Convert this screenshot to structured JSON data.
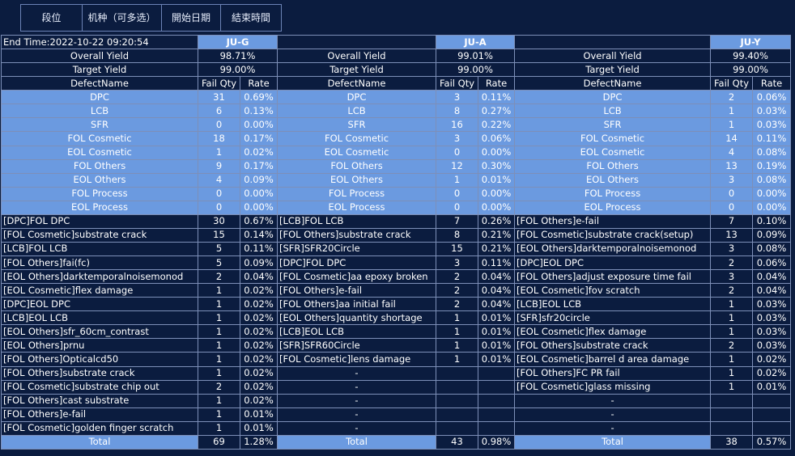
{
  "tabs": [
    "段位",
    "机种（可多选）",
    "開始日期",
    "結束時間"
  ],
  "end_time": "End Time:2022-10-22 09:20:54",
  "labels": {
    "overall": "Overall Yield",
    "target": "Target Yield",
    "defect": "DefectName",
    "failqty": "Fail Qty",
    "rate": "Rate",
    "total": "Total",
    "dash": "-"
  },
  "groups": [
    {
      "name": "JU-G",
      "overall_yield": "98.71%",
      "target_yield": "99.00%",
      "summary": [
        {
          "name": "DPC",
          "qty": "31",
          "rate": "0.69%"
        },
        {
          "name": "LCB",
          "qty": "6",
          "rate": "0.13%"
        },
        {
          "name": "SFR",
          "qty": "0",
          "rate": "0.00%"
        },
        {
          "name": "FOL Cosmetic",
          "qty": "18",
          "rate": "0.17%"
        },
        {
          "name": "EOL Cosmetic",
          "qty": "1",
          "rate": "0.02%"
        },
        {
          "name": "FOL Others",
          "qty": "9",
          "rate": "0.17%"
        },
        {
          "name": "EOL Others",
          "qty": "4",
          "rate": "0.09%"
        },
        {
          "name": "FOL Process",
          "qty": "0",
          "rate": "0.00%"
        },
        {
          "name": "EOL Process",
          "qty": "0",
          "rate": "0.00%"
        }
      ],
      "details": [
        {
          "name": "[DPC]FOL DPC",
          "qty": "30",
          "rate": "0.67%"
        },
        {
          "name": "[FOL Cosmetic]substrate crack",
          "qty": "15",
          "rate": "0.14%"
        },
        {
          "name": "[LCB]FOL LCB",
          "qty": "5",
          "rate": "0.11%"
        },
        {
          "name": "[FOL Others]fai(fc)",
          "qty": "5",
          "rate": "0.09%"
        },
        {
          "name": "[EOL Others]darktemporalnoisemonod",
          "qty": "2",
          "rate": "0.04%"
        },
        {
          "name": "[EOL Cosmetic]flex damage",
          "qty": "1",
          "rate": "0.02%"
        },
        {
          "name": "[DPC]EOL DPC",
          "qty": "1",
          "rate": "0.02%"
        },
        {
          "name": "[LCB]EOL LCB",
          "qty": "1",
          "rate": "0.02%"
        },
        {
          "name": "[EOL Others]sfr_60cm_contrast",
          "qty": "1",
          "rate": "0.02%"
        },
        {
          "name": "[EOL Others]prnu",
          "qty": "1",
          "rate": "0.02%"
        },
        {
          "name": "[FOL Others]Opticalcd50",
          "qty": "1",
          "rate": "0.02%"
        },
        {
          "name": "[FOL Others]substrate crack",
          "qty": "1",
          "rate": "0.02%"
        },
        {
          "name": "[FOL Cosmetic]substrate chip out",
          "qty": "2",
          "rate": "0.02%"
        },
        {
          "name": "[FOL Others]cast substrate",
          "qty": "1",
          "rate": "0.02%"
        },
        {
          "name": "[FOL Others]e-fail",
          "qty": "1",
          "rate": "0.01%"
        },
        {
          "name": "[FOL Cosmetic]golden finger scratch",
          "qty": "1",
          "rate": "0.01%"
        }
      ],
      "total": {
        "qty": "69",
        "rate": "1.28%"
      }
    },
    {
      "name": "JU-A",
      "overall_yield": "99.01%",
      "target_yield": "99.00%",
      "summary": [
        {
          "name": "DPC",
          "qty": "3",
          "rate": "0.11%"
        },
        {
          "name": "LCB",
          "qty": "8",
          "rate": "0.27%"
        },
        {
          "name": "SFR",
          "qty": "16",
          "rate": "0.22%"
        },
        {
          "name": "FOL Cosmetic",
          "qty": "3",
          "rate": "0.06%"
        },
        {
          "name": "EOL Cosmetic",
          "qty": "0",
          "rate": "0.00%"
        },
        {
          "name": "FOL Others",
          "qty": "12",
          "rate": "0.30%"
        },
        {
          "name": "EOL Others",
          "qty": "1",
          "rate": "0.01%"
        },
        {
          "name": "FOL Process",
          "qty": "0",
          "rate": "0.00%"
        },
        {
          "name": "EOL Process",
          "qty": "0",
          "rate": "0.00%"
        }
      ],
      "details": [
        {
          "name": "[LCB]FOL LCB",
          "qty": "7",
          "rate": "0.26%"
        },
        {
          "name": "[FOL Others]substrate crack",
          "qty": "8",
          "rate": "0.21%"
        },
        {
          "name": "[SFR]SFR20Circle",
          "qty": "15",
          "rate": "0.21%"
        },
        {
          "name": "[DPC]FOL DPC",
          "qty": "3",
          "rate": "0.11%"
        },
        {
          "name": "[FOL Cosmetic]aa epoxy broken",
          "qty": "2",
          "rate": "0.04%"
        },
        {
          "name": "[FOL Others]e-fail",
          "qty": "2",
          "rate": "0.04%"
        },
        {
          "name": "[FOL Others]aa initial fail",
          "qty": "2",
          "rate": "0.04%"
        },
        {
          "name": "[EOL Others]quantity shortage",
          "qty": "1",
          "rate": "0.01%"
        },
        {
          "name": "[LCB]EOL LCB",
          "qty": "1",
          "rate": "0.01%"
        },
        {
          "name": "[SFR]SFR60Circle",
          "qty": "1",
          "rate": "0.01%"
        },
        {
          "name": "[FOL Cosmetic]lens damage",
          "qty": "1",
          "rate": "0.01%"
        },
        {
          "name": "-",
          "qty": "",
          "rate": ""
        },
        {
          "name": "-",
          "qty": "",
          "rate": ""
        },
        {
          "name": "-",
          "qty": "",
          "rate": ""
        },
        {
          "name": "-",
          "qty": "",
          "rate": ""
        },
        {
          "name": "-",
          "qty": "",
          "rate": ""
        }
      ],
      "total": {
        "qty": "43",
        "rate": "0.98%"
      }
    },
    {
      "name": "JU-Y",
      "overall_yield": "99.40%",
      "target_yield": "99.00%",
      "summary": [
        {
          "name": "DPC",
          "qty": "2",
          "rate": "0.06%"
        },
        {
          "name": "LCB",
          "qty": "1",
          "rate": "0.03%"
        },
        {
          "name": "SFR",
          "qty": "1",
          "rate": "0.03%"
        },
        {
          "name": "FOL Cosmetic",
          "qty": "14",
          "rate": "0.11%"
        },
        {
          "name": "EOL Cosmetic",
          "qty": "4",
          "rate": "0.08%"
        },
        {
          "name": "FOL Others",
          "qty": "13",
          "rate": "0.19%"
        },
        {
          "name": "EOL Others",
          "qty": "3",
          "rate": "0.08%"
        },
        {
          "name": "FOL Process",
          "qty": "0",
          "rate": "0.00%"
        },
        {
          "name": "EOL Process",
          "qty": "0",
          "rate": "0.00%"
        }
      ],
      "details": [
        {
          "name": "[FOL Others]e-fail",
          "qty": "7",
          "rate": "0.10%"
        },
        {
          "name": "[FOL Cosmetic]substrate crack(setup)",
          "qty": "13",
          "rate": "0.09%"
        },
        {
          "name": "[EOL Others]darktemporalnoisemonod",
          "qty": "3",
          "rate": "0.08%"
        },
        {
          "name": "[DPC]EOL DPC",
          "qty": "2",
          "rate": "0.06%"
        },
        {
          "name": "[FOL Others]adjust exposure time fail",
          "qty": "3",
          "rate": "0.04%"
        },
        {
          "name": "[EOL Cosmetic]fov scratch",
          "qty": "2",
          "rate": "0.04%"
        },
        {
          "name": "[LCB]EOL LCB",
          "qty": "1",
          "rate": "0.03%"
        },
        {
          "name": "[SFR]sfr20circle",
          "qty": "1",
          "rate": "0.03%"
        },
        {
          "name": "[EOL Cosmetic]flex damage",
          "qty": "1",
          "rate": "0.03%"
        },
        {
          "name": "[FOL Others]substrate crack",
          "qty": "2",
          "rate": "0.03%"
        },
        {
          "name": "[EOL Cosmetic]barrel d area damage",
          "qty": "1",
          "rate": "0.02%"
        },
        {
          "name": "[FOL Others]FC PR fail",
          "qty": "1",
          "rate": "0.02%"
        },
        {
          "name": "[FOL Cosmetic]glass missing",
          "qty": "1",
          "rate": "0.01%"
        },
        {
          "name": "-",
          "qty": "",
          "rate": ""
        },
        {
          "name": "-",
          "qty": "",
          "rate": ""
        },
        {
          "name": "-",
          "qty": "",
          "rate": ""
        }
      ],
      "total": {
        "qty": "38",
        "rate": "0.57%"
      }
    }
  ]
}
